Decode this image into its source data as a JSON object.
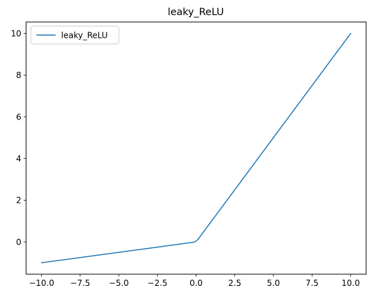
{
  "chart_data": {
    "type": "line",
    "title": "leaky_ReLU",
    "xlabel": "",
    "ylabel": "",
    "xlim": [
      -11.0,
      11.0
    ],
    "ylim": [
      -1.55,
      10.55
    ],
    "xticks": [
      -10.0,
      -7.5,
      -5.0,
      -2.5,
      0.0,
      2.5,
      5.0,
      7.5,
      10.0
    ],
    "xtick_labels": [
      "−10.0",
      "−7.5",
      "−5.0",
      "−2.5",
      "0.0",
      "2.5",
      "5.0",
      "7.5",
      "10.0"
    ],
    "yticks": [
      0,
      2,
      4,
      6,
      8,
      10
    ],
    "ytick_labels": [
      "0",
      "2",
      "4",
      "6",
      "8",
      "10"
    ],
    "grid": false,
    "legend_position": "top-left",
    "series": [
      {
        "name": "leaky_ReLU",
        "color": "#1f77b4",
        "x": [
          -10.0,
          -0.1,
          0.1,
          10.0
        ],
        "y": [
          -1.0,
          -0.01,
          0.1,
          10.0
        ]
      }
    ]
  }
}
